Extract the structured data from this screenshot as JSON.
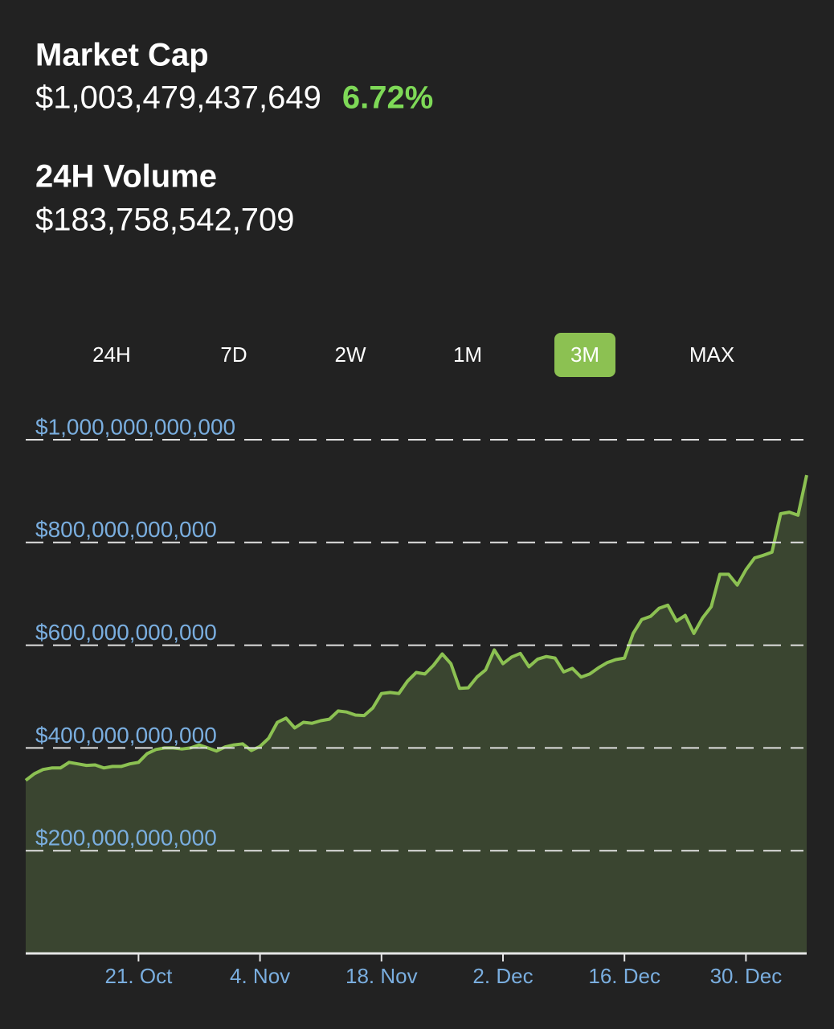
{
  "header": {
    "market_cap_label": "Market Cap",
    "market_cap_value": "$1,003,479,437,649",
    "market_cap_change": "6.72%",
    "volume_label": "24H Volume",
    "volume_value": "$183,758,542,709"
  },
  "tabs": {
    "items": [
      "24H",
      "7D",
      "2W",
      "1M",
      "3M",
      "MAX"
    ],
    "active": "3M"
  },
  "chart_data": {
    "type": "area",
    "color": "#8cc152",
    "fill": "#3a4530",
    "grid": true,
    "x": [
      0,
      1,
      2,
      3,
      4,
      5,
      6,
      7,
      8,
      9,
      10,
      11,
      12,
      13,
      14,
      15,
      16,
      17,
      18,
      19,
      20,
      21,
      22,
      23,
      24,
      25,
      26,
      27,
      28,
      29,
      30,
      31,
      32,
      33,
      34,
      35,
      36,
      37,
      38,
      39,
      40,
      41,
      42,
      43,
      44,
      45,
      46,
      47,
      48,
      49,
      50,
      51,
      52,
      53,
      54,
      55,
      56,
      57,
      58,
      59,
      60,
      61,
      62,
      63,
      64,
      65,
      66,
      67,
      68,
      69,
      70,
      71,
      72,
      73,
      74,
      75,
      76,
      77,
      78,
      79,
      80,
      81,
      82,
      83,
      84,
      85,
      86,
      87,
      88,
      89,
      90
    ],
    "values": [
      337000000000,
      350000000000,
      358000000000,
      361000000000,
      361000000000,
      372000000000,
      369000000000,
      366000000000,
      367000000000,
      361000000000,
      364000000000,
      364000000000,
      369000000000,
      372000000000,
      389000000000,
      397000000000,
      400000000000,
      400000000000,
      398000000000,
      400000000000,
      406000000000,
      400000000000,
      394000000000,
      402000000000,
      406000000000,
      408000000000,
      395000000000,
      403000000000,
      419000000000,
      450000000000,
      458000000000,
      439000000000,
      450000000000,
      448000000000,
      453000000000,
      456000000000,
      472000000000,
      470000000000,
      464000000000,
      463000000000,
      478000000000,
      506000000000,
      508000000000,
      506000000000,
      530000000000,
      547000000000,
      544000000000,
      561000000000,
      583000000000,
      564000000000,
      516000000000,
      517000000000,
      538000000000,
      552000000000,
      591000000000,
      564000000000,
      577000000000,
      584000000000,
      558000000000,
      573000000000,
      578000000000,
      575000000000,
      548000000000,
      555000000000,
      538000000000,
      544000000000,
      556000000000,
      566000000000,
      572000000000,
      575000000000,
      623000000000,
      650000000000,
      656000000000,
      672000000000,
      678000000000,
      647000000000,
      658000000000,
      623000000000,
      653000000000,
      675000000000,
      738000000000,
      738000000000,
      717000000000,
      747000000000,
      770000000000,
      775000000000,
      781000000000,
      856000000000,
      859000000000,
      853000000000,
      931000000000
    ],
    "xlim": [
      0,
      90
    ],
    "xticks": [
      {
        "value": 13,
        "label": "21. Oct"
      },
      {
        "value": 27,
        "label": "4. Nov"
      },
      {
        "value": 41,
        "label": "18. Nov"
      },
      {
        "value": 55,
        "label": "2. Dec"
      },
      {
        "value": 69,
        "label": "16. Dec"
      },
      {
        "value": 83,
        "label": "30. Dec"
      }
    ],
    "ylim": [
      0,
      1000000000000
    ],
    "yticks": [
      {
        "value": 200000000000,
        "label": "$200,000,000,000"
      },
      {
        "value": 400000000000,
        "label": "$400,000,000,000"
      },
      {
        "value": 600000000000,
        "label": "$600,000,000,000"
      },
      {
        "value": 800000000000,
        "label": "$800,000,000,000"
      },
      {
        "value": 1000000000000,
        "label": "$1,000,000,000,000"
      }
    ]
  }
}
